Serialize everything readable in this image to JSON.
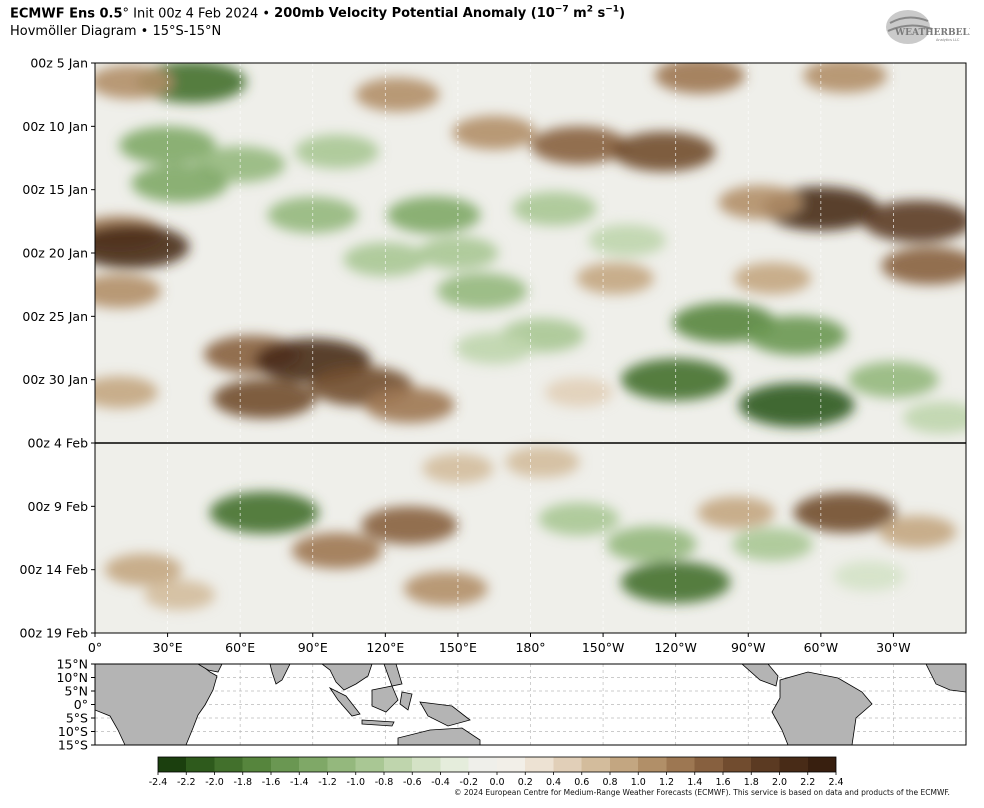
{
  "header": {
    "model": "ECMWF Ens 0.5",
    "degree": "°",
    "init": " Init 00z 4 Feb 2024 • ",
    "field": "200mb Velocity Potential Anomaly (10",
    "exp": "−7",
    "units_mid": " m",
    "exp2": "2",
    "units_end": " s",
    "exp3": "−1",
    "close": ")",
    "subtitle": "Hovmöller Diagram • 15°S-15°N"
  },
  "logo": {
    "text": "WEATHERBELL",
    "small": "Analytics LLC"
  },
  "credit": "© 2024 European Centre for Medium-Range Weather Forecasts (ECMWF). This service is based on data and products of the ECMWF.",
  "colors": {
    "neg_strong": "#1f4a12",
    "neg_mid": "#6a9a52",
    "neutral": "#ecece6",
    "pos_mid": "#b89474",
    "pos_strong": "#4a2a14"
  },
  "chart_data": {
    "type": "heatmap",
    "title": "200mb Velocity Potential Anomaly",
    "xlabel": "",
    "ylabel": "",
    "x_ticks": [
      "0°",
      "30°E",
      "60°E",
      "90°E",
      "120°E",
      "150°E",
      "180°",
      "150°W",
      "120°W",
      "90°W",
      "60°W",
      "30°W"
    ],
    "x_tick_lon": [
      0,
      30,
      60,
      90,
      120,
      150,
      180,
      210,
      240,
      270,
      300,
      330
    ],
    "xlim": [
      0,
      360
    ],
    "y_ticks": [
      "00z 5 Jan",
      "00z 10 Jan",
      "00z 15 Jan",
      "00z 20 Jan",
      "00z 25 Jan",
      "00z 30 Jan",
      "00z 4 Feb",
      "00z 9 Feb",
      "00z 14 Feb",
      "00z 19 Feb"
    ],
    "y_tick_day": [
      0,
      5,
      10,
      15,
      20,
      25,
      30,
      35,
      40,
      45
    ],
    "ylim": [
      0,
      45
    ],
    "init_line_day": 30,
    "anomaly_blobs": [
      {
        "lon": 40,
        "day": 1.5,
        "value": -1.8
      },
      {
        "lon": 15,
        "day": 1.5,
        "value": 1.0
      },
      {
        "lon": 125,
        "day": 2.5,
        "value": 1.0
      },
      {
        "lon": 165,
        "day": 5.5,
        "value": 1.0
      },
      {
        "lon": 200,
        "day": 6.5,
        "value": 1.4
      },
      {
        "lon": 235,
        "day": 7,
        "value": 1.6
      },
      {
        "lon": 250,
        "day": 1,
        "value": 1.2
      },
      {
        "lon": 310,
        "day": 1,
        "value": 1.0
      },
      {
        "lon": 30,
        "day": 6.5,
        "value": -1.4
      },
      {
        "lon": 60,
        "day": 8,
        "value": -1.2
      },
      {
        "lon": 100,
        "day": 7,
        "value": -1.0
      },
      {
        "lon": 140,
        "day": 12,
        "value": -1.3
      },
      {
        "lon": 90,
        "day": 12,
        "value": -1.2
      },
      {
        "lon": 35,
        "day": 9.5,
        "value": -1.4
      },
      {
        "lon": 190,
        "day": 11.5,
        "value": -1.0
      },
      {
        "lon": 220,
        "day": 14,
        "value": -0.8
      },
      {
        "lon": 10,
        "day": 13.5,
        "value": 1.2
      },
      {
        "lon": 15,
        "day": 14.5,
        "value": 2.0
      },
      {
        "lon": 300,
        "day": 11.5,
        "value": 2.0
      },
      {
        "lon": 340,
        "day": 12.5,
        "value": 1.8
      },
      {
        "lon": 275,
        "day": 11,
        "value": 1.0
      },
      {
        "lon": 280,
        "day": 17,
        "value": 0.8
      },
      {
        "lon": 345,
        "day": 16,
        "value": 1.4
      },
      {
        "lon": 120,
        "day": 15.5,
        "value": -1.0
      },
      {
        "lon": 160,
        "day": 18,
        "value": -1.2
      },
      {
        "lon": 150,
        "day": 15,
        "value": -0.9
      },
      {
        "lon": 10,
        "day": 18,
        "value": 1.0
      },
      {
        "lon": 215,
        "day": 17,
        "value": 0.8
      },
      {
        "lon": 260,
        "day": 20.5,
        "value": -1.6
      },
      {
        "lon": 290,
        "day": 21.5,
        "value": -1.5
      },
      {
        "lon": 240,
        "day": 25,
        "value": -1.8
      },
      {
        "lon": 290,
        "day": 27,
        "value": -2.0
      },
      {
        "lon": 330,
        "day": 25,
        "value": -1.2
      },
      {
        "lon": 185,
        "day": 21.5,
        "value": -1.0
      },
      {
        "lon": 165,
        "day": 22.5,
        "value": -0.8
      },
      {
        "lon": 65,
        "day": 23,
        "value": 1.4
      },
      {
        "lon": 90,
        "day": 23.5,
        "value": 2.0
      },
      {
        "lon": 110,
        "day": 25.5,
        "value": 1.6
      },
      {
        "lon": 70,
        "day": 26.5,
        "value": 1.6
      },
      {
        "lon": 130,
        "day": 27,
        "value": 1.2
      },
      {
        "lon": 10,
        "day": 26,
        "value": 0.8
      },
      {
        "lon": 350,
        "day": 28,
        "value": -0.8
      },
      {
        "lon": 200,
        "day": 26,
        "value": 0.5
      },
      {
        "lon": 70,
        "day": 35.5,
        "value": -1.8
      },
      {
        "lon": 130,
        "day": 36.5,
        "value": 1.4
      },
      {
        "lon": 100,
        "day": 38.5,
        "value": 1.2
      },
      {
        "lon": 145,
        "day": 41.5,
        "value": 1.0
      },
      {
        "lon": 20,
        "day": 40,
        "value": 0.8
      },
      {
        "lon": 35,
        "day": 42,
        "value": 0.6
      },
      {
        "lon": 240,
        "day": 41,
        "value": -1.8
      },
      {
        "lon": 230,
        "day": 38,
        "value": -1.2
      },
      {
        "lon": 200,
        "day": 36,
        "value": -0.9
      },
      {
        "lon": 280,
        "day": 38,
        "value": -0.9
      },
      {
        "lon": 310,
        "day": 35.5,
        "value": 1.6
      },
      {
        "lon": 265,
        "day": 35.5,
        "value": 0.8
      },
      {
        "lon": 340,
        "day": 37,
        "value": 0.8
      },
      {
        "lon": 320,
        "day": 40.5,
        "value": -0.6
      },
      {
        "lon": 185,
        "day": 31.5,
        "value": 0.7
      },
      {
        "lon": 150,
        "day": 32,
        "value": 0.6
      }
    ]
  },
  "map": {
    "lat_ticks": [
      "15°N",
      "10°N",
      "5°N",
      "0°",
      "5°S",
      "10°S",
      "15°S"
    ],
    "lat_values": [
      15,
      10,
      5,
      0,
      -5,
      -10,
      -15
    ]
  },
  "colorbar": {
    "min": -2.4,
    "max": 2.4,
    "labels": [
      "-2.4",
      "-2.2",
      "-2.0",
      "-1.8",
      "-1.6",
      "-1.4",
      "-1.2",
      "-1.0",
      "-0.8",
      "-0.6",
      "-0.4",
      "-0.2",
      "0.0",
      "0.2",
      "0.4",
      "0.6",
      "0.8",
      "1.0",
      "1.2",
      "1.4",
      "1.6",
      "1.8",
      "2.0",
      "2.2",
      "2.4"
    ],
    "stops": [
      "#1b3f0e",
      "#2e5a1c",
      "#42702c",
      "#56853d",
      "#6a9752",
      "#7fa867",
      "#94b87d",
      "#a9c794",
      "#bfd5ad",
      "#d4e2c6",
      "#e5eddc",
      "#efefea",
      "#f2efe8",
      "#ede2d3",
      "#e1cfb8",
      "#d3bc9c",
      "#c3a681",
      "#b18f68",
      "#9d7752",
      "#87603f",
      "#714c2f",
      "#5b3a22",
      "#482b17",
      "#381f0f"
    ]
  }
}
